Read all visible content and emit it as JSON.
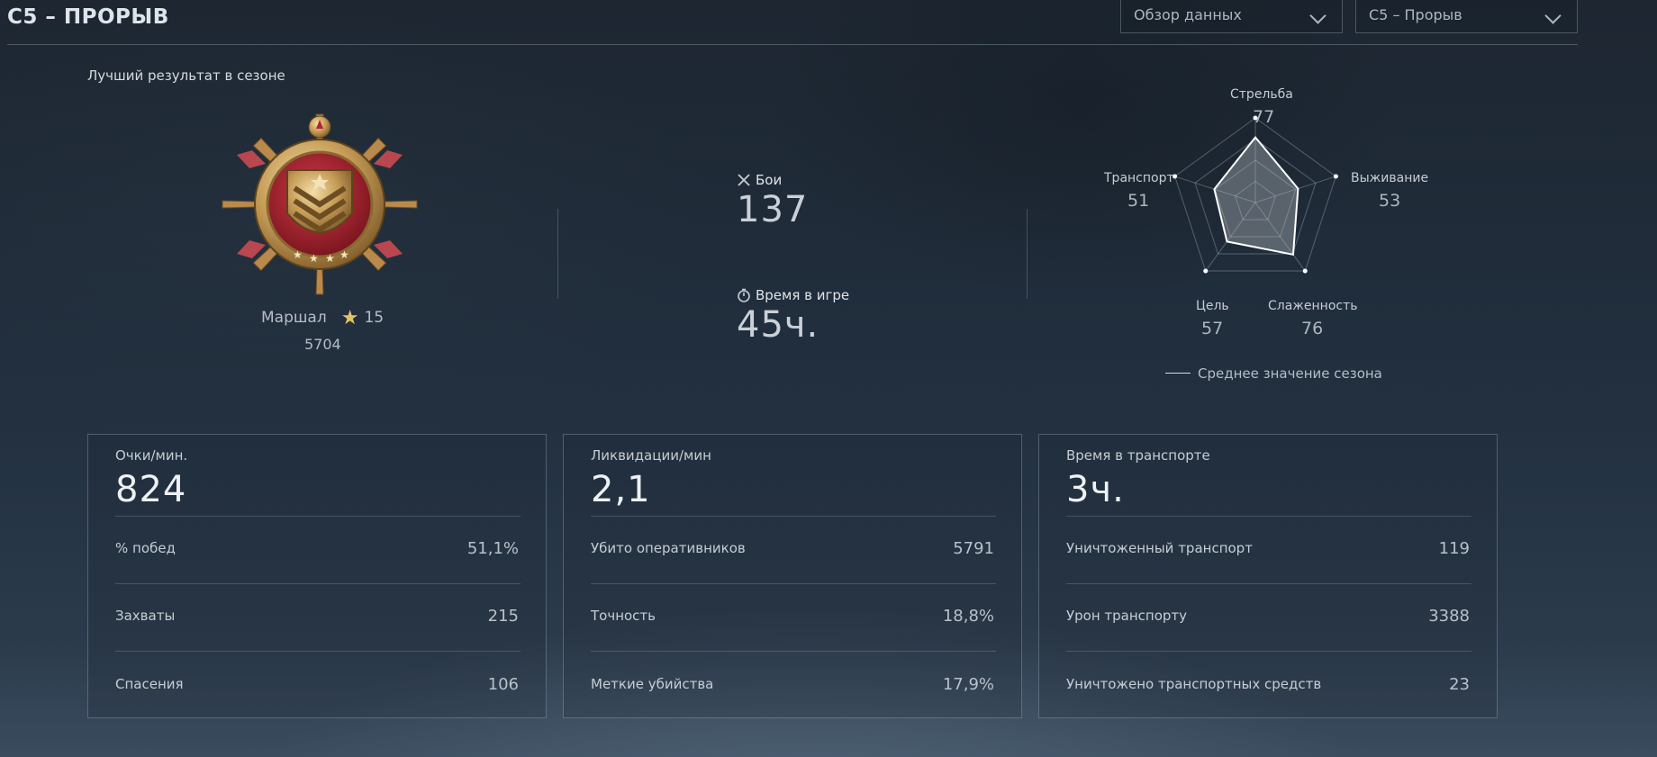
{
  "header": {
    "title": "C5 – ПРОРЫВ",
    "dropdown_view": "Обзор данных",
    "dropdown_season": "C5 – Прорыв"
  },
  "best": {
    "label": "Лучший результат в сезоне",
    "rank_name": "Маршал",
    "rank_level": "15",
    "score": "5704"
  },
  "summary": {
    "battles_label": "Бои",
    "battles_value": "137",
    "playtime_label": "Время в игре",
    "playtime_value": "45ч."
  },
  "radar": {
    "items": [
      {
        "label": "Стрельба",
        "value": "77",
        "score": 77
      },
      {
        "label": "Выживание",
        "value": "53",
        "score": 53
      },
      {
        "label": "Слаженность",
        "value": "76",
        "score": 76
      },
      {
        "label": "Цель",
        "value": "57",
        "score": 57
      },
      {
        "label": "Транспорт",
        "value": "51",
        "score": 51
      }
    ],
    "legend": "Среднее значение сезона"
  },
  "panels": [
    {
      "title": "Очки/мин.",
      "value": "824",
      "rows": [
        {
          "label": "% побед",
          "value": "51,1%"
        },
        {
          "label": "Захваты",
          "value": "215"
        },
        {
          "label": "Спасения",
          "value": "106"
        }
      ]
    },
    {
      "title": "Ликвидации/мин",
      "value": "2,1",
      "rows": [
        {
          "label": "Убито оперативников",
          "value": "5791"
        },
        {
          "label": "Точность",
          "value": "18,8%"
        },
        {
          "label": "Меткие убийства",
          "value": "17,9%"
        }
      ]
    },
    {
      "title": "Время в транспорте",
      "value": "3ч.",
      "rows": [
        {
          "label": "Уничтоженный транспорт",
          "value": "119"
        },
        {
          "label": "Урон транспорту",
          "value": "3388"
        },
        {
          "label": "Уничтожено транспортных средств",
          "value": "23"
        }
      ]
    }
  ]
}
